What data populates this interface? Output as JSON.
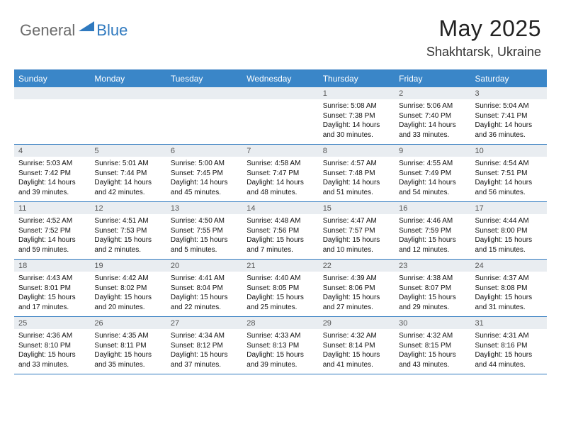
{
  "logo": {
    "text1": "General",
    "text2": "Blue"
  },
  "title": "May 2025",
  "subtitle": "Shakhtarsk, Ukraine",
  "colors": {
    "header_bg": "#3a86c8",
    "border": "#2f79bf",
    "daynum_bg": "#e9edf1",
    "logo_gray": "#6a6a6a",
    "logo_blue": "#2f79bf"
  },
  "day_headers": [
    "Sunday",
    "Monday",
    "Tuesday",
    "Wednesday",
    "Thursday",
    "Friday",
    "Saturday"
  ],
  "weeks": [
    [
      {
        "num": "",
        "sunrise": "",
        "sunset": "",
        "daylight": ""
      },
      {
        "num": "",
        "sunrise": "",
        "sunset": "",
        "daylight": ""
      },
      {
        "num": "",
        "sunrise": "",
        "sunset": "",
        "daylight": ""
      },
      {
        "num": "",
        "sunrise": "",
        "sunset": "",
        "daylight": ""
      },
      {
        "num": "1",
        "sunrise": "Sunrise: 5:08 AM",
        "sunset": "Sunset: 7:38 PM",
        "daylight": "Daylight: 14 hours and 30 minutes."
      },
      {
        "num": "2",
        "sunrise": "Sunrise: 5:06 AM",
        "sunset": "Sunset: 7:40 PM",
        "daylight": "Daylight: 14 hours and 33 minutes."
      },
      {
        "num": "3",
        "sunrise": "Sunrise: 5:04 AM",
        "sunset": "Sunset: 7:41 PM",
        "daylight": "Daylight: 14 hours and 36 minutes."
      }
    ],
    [
      {
        "num": "4",
        "sunrise": "Sunrise: 5:03 AM",
        "sunset": "Sunset: 7:42 PM",
        "daylight": "Daylight: 14 hours and 39 minutes."
      },
      {
        "num": "5",
        "sunrise": "Sunrise: 5:01 AM",
        "sunset": "Sunset: 7:44 PM",
        "daylight": "Daylight: 14 hours and 42 minutes."
      },
      {
        "num": "6",
        "sunrise": "Sunrise: 5:00 AM",
        "sunset": "Sunset: 7:45 PM",
        "daylight": "Daylight: 14 hours and 45 minutes."
      },
      {
        "num": "7",
        "sunrise": "Sunrise: 4:58 AM",
        "sunset": "Sunset: 7:47 PM",
        "daylight": "Daylight: 14 hours and 48 minutes."
      },
      {
        "num": "8",
        "sunrise": "Sunrise: 4:57 AM",
        "sunset": "Sunset: 7:48 PM",
        "daylight": "Daylight: 14 hours and 51 minutes."
      },
      {
        "num": "9",
        "sunrise": "Sunrise: 4:55 AM",
        "sunset": "Sunset: 7:49 PM",
        "daylight": "Daylight: 14 hours and 54 minutes."
      },
      {
        "num": "10",
        "sunrise": "Sunrise: 4:54 AM",
        "sunset": "Sunset: 7:51 PM",
        "daylight": "Daylight: 14 hours and 56 minutes."
      }
    ],
    [
      {
        "num": "11",
        "sunrise": "Sunrise: 4:52 AM",
        "sunset": "Sunset: 7:52 PM",
        "daylight": "Daylight: 14 hours and 59 minutes."
      },
      {
        "num": "12",
        "sunrise": "Sunrise: 4:51 AM",
        "sunset": "Sunset: 7:53 PM",
        "daylight": "Daylight: 15 hours and 2 minutes."
      },
      {
        "num": "13",
        "sunrise": "Sunrise: 4:50 AM",
        "sunset": "Sunset: 7:55 PM",
        "daylight": "Daylight: 15 hours and 5 minutes."
      },
      {
        "num": "14",
        "sunrise": "Sunrise: 4:48 AM",
        "sunset": "Sunset: 7:56 PM",
        "daylight": "Daylight: 15 hours and 7 minutes."
      },
      {
        "num": "15",
        "sunrise": "Sunrise: 4:47 AM",
        "sunset": "Sunset: 7:57 PM",
        "daylight": "Daylight: 15 hours and 10 minutes."
      },
      {
        "num": "16",
        "sunrise": "Sunrise: 4:46 AM",
        "sunset": "Sunset: 7:59 PM",
        "daylight": "Daylight: 15 hours and 12 minutes."
      },
      {
        "num": "17",
        "sunrise": "Sunrise: 4:44 AM",
        "sunset": "Sunset: 8:00 PM",
        "daylight": "Daylight: 15 hours and 15 minutes."
      }
    ],
    [
      {
        "num": "18",
        "sunrise": "Sunrise: 4:43 AM",
        "sunset": "Sunset: 8:01 PM",
        "daylight": "Daylight: 15 hours and 17 minutes."
      },
      {
        "num": "19",
        "sunrise": "Sunrise: 4:42 AM",
        "sunset": "Sunset: 8:02 PM",
        "daylight": "Daylight: 15 hours and 20 minutes."
      },
      {
        "num": "20",
        "sunrise": "Sunrise: 4:41 AM",
        "sunset": "Sunset: 8:04 PM",
        "daylight": "Daylight: 15 hours and 22 minutes."
      },
      {
        "num": "21",
        "sunrise": "Sunrise: 4:40 AM",
        "sunset": "Sunset: 8:05 PM",
        "daylight": "Daylight: 15 hours and 25 minutes."
      },
      {
        "num": "22",
        "sunrise": "Sunrise: 4:39 AM",
        "sunset": "Sunset: 8:06 PM",
        "daylight": "Daylight: 15 hours and 27 minutes."
      },
      {
        "num": "23",
        "sunrise": "Sunrise: 4:38 AM",
        "sunset": "Sunset: 8:07 PM",
        "daylight": "Daylight: 15 hours and 29 minutes."
      },
      {
        "num": "24",
        "sunrise": "Sunrise: 4:37 AM",
        "sunset": "Sunset: 8:08 PM",
        "daylight": "Daylight: 15 hours and 31 minutes."
      }
    ],
    [
      {
        "num": "25",
        "sunrise": "Sunrise: 4:36 AM",
        "sunset": "Sunset: 8:10 PM",
        "daylight": "Daylight: 15 hours and 33 minutes."
      },
      {
        "num": "26",
        "sunrise": "Sunrise: 4:35 AM",
        "sunset": "Sunset: 8:11 PM",
        "daylight": "Daylight: 15 hours and 35 minutes."
      },
      {
        "num": "27",
        "sunrise": "Sunrise: 4:34 AM",
        "sunset": "Sunset: 8:12 PM",
        "daylight": "Daylight: 15 hours and 37 minutes."
      },
      {
        "num": "28",
        "sunrise": "Sunrise: 4:33 AM",
        "sunset": "Sunset: 8:13 PM",
        "daylight": "Daylight: 15 hours and 39 minutes."
      },
      {
        "num": "29",
        "sunrise": "Sunrise: 4:32 AM",
        "sunset": "Sunset: 8:14 PM",
        "daylight": "Daylight: 15 hours and 41 minutes."
      },
      {
        "num": "30",
        "sunrise": "Sunrise: 4:32 AM",
        "sunset": "Sunset: 8:15 PM",
        "daylight": "Daylight: 15 hours and 43 minutes."
      },
      {
        "num": "31",
        "sunrise": "Sunrise: 4:31 AM",
        "sunset": "Sunset: 8:16 PM",
        "daylight": "Daylight: 15 hours and 44 minutes."
      }
    ]
  ]
}
